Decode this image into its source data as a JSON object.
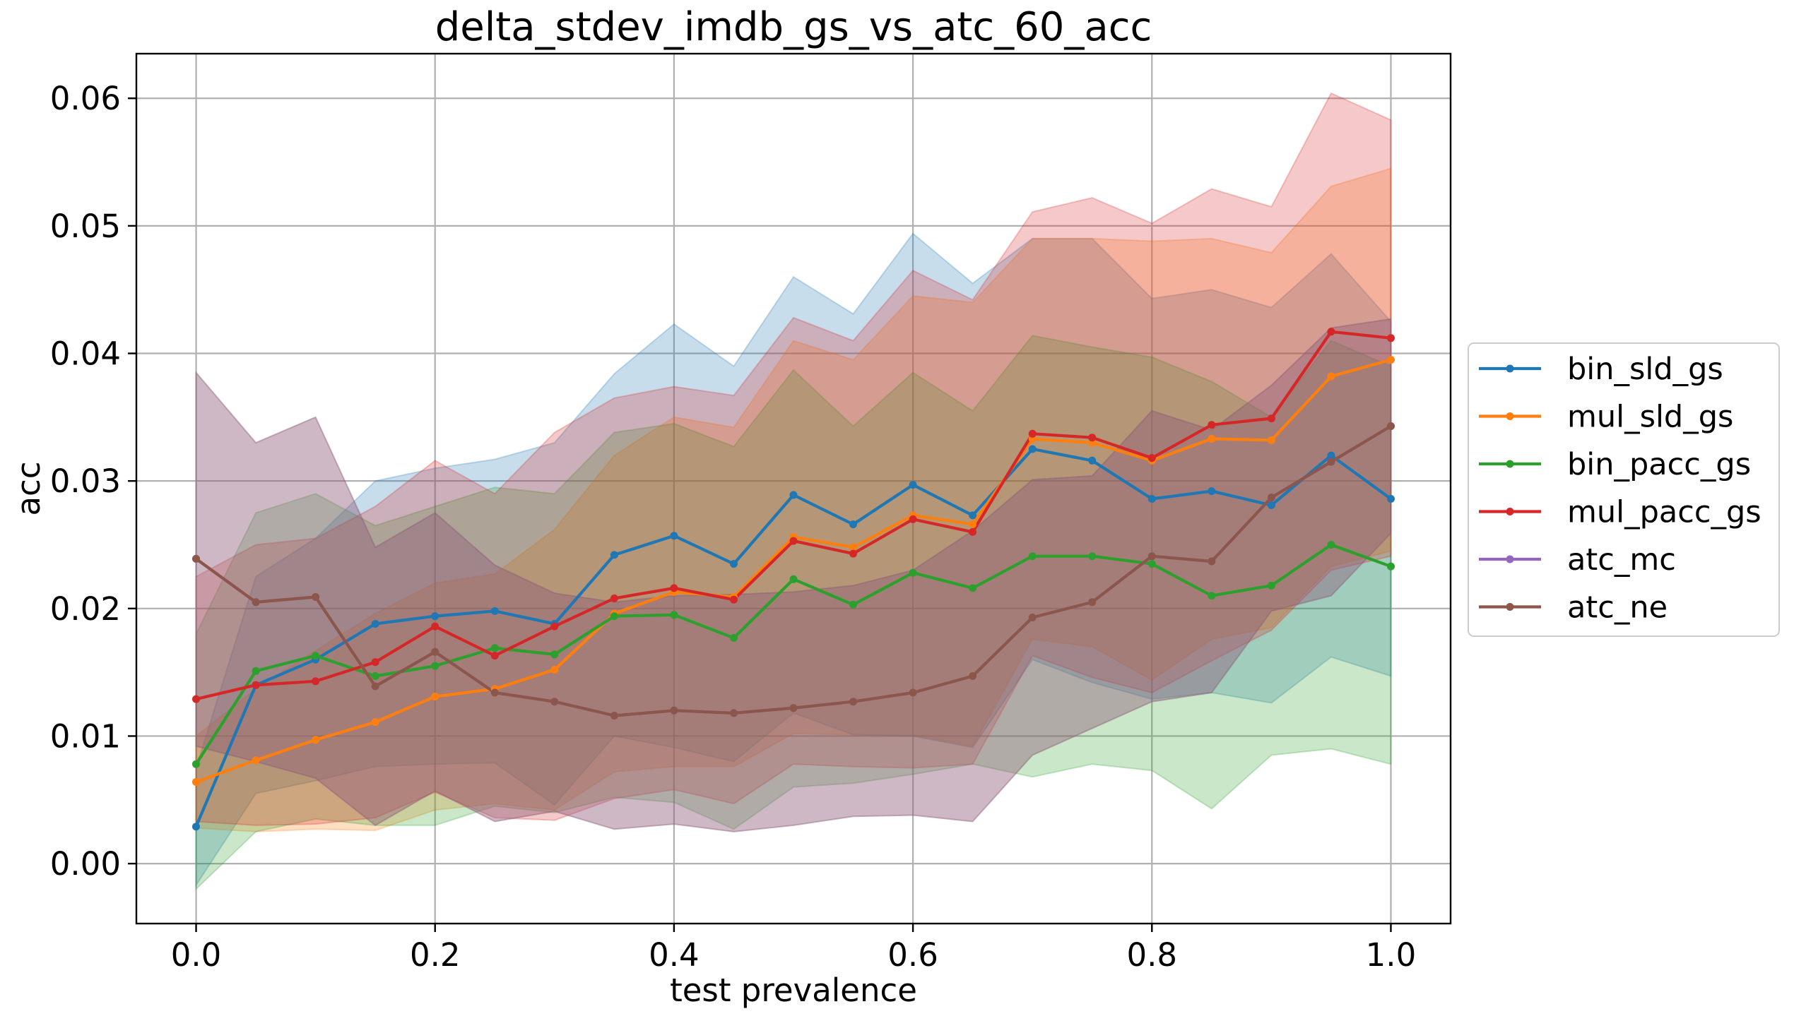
{
  "chart_data": {
    "type": "line",
    "title": "delta_stdev_imdb_gs_vs_atc_60_acc",
    "xlabel": "test prevalence",
    "ylabel": "acc",
    "xlim": [
      -0.05,
      1.05
    ],
    "ylim": [
      -0.0047,
      0.0635
    ],
    "x_ticks": [
      0.0,
      0.2,
      0.4,
      0.6,
      0.8,
      1.0
    ],
    "x_tick_labels": [
      "0.0",
      "0.2",
      "0.4",
      "0.6",
      "0.8",
      "1.0"
    ],
    "y_ticks": [
      0.0,
      0.01,
      0.02,
      0.03,
      0.04,
      0.05,
      0.06
    ],
    "y_tick_labels": [
      "0.00",
      "0.01",
      "0.02",
      "0.03",
      "0.04",
      "0.05",
      "0.06"
    ],
    "grid": true,
    "legend_position": "center-right-outside",
    "x": [
      0.0,
      0.05,
      0.1,
      0.15,
      0.2,
      0.25,
      0.3,
      0.35,
      0.4,
      0.45,
      0.5,
      0.55,
      0.6,
      0.65,
      0.7,
      0.75,
      0.8,
      0.85,
      0.9,
      0.95,
      1.0
    ],
    "series": [
      {
        "name": "bin_sld_gs",
        "color": "#1f77b4",
        "values": [
          0.0029,
          0.014,
          0.016,
          0.0188,
          0.0194,
          0.0198,
          0.0188,
          0.0242,
          0.0257,
          0.0235,
          0.0289,
          0.0266,
          0.0297,
          0.0273,
          0.0325,
          0.0316,
          0.0286,
          0.0292,
          0.0281,
          0.032,
          0.0286
        ],
        "band_upper": [
          0.0075,
          0.0225,
          0.0255,
          0.03,
          0.031,
          0.0317,
          0.033,
          0.0384,
          0.0423,
          0.039,
          0.046,
          0.0431,
          0.0494,
          0.0455,
          0.049,
          0.049,
          0.0443,
          0.045,
          0.0436,
          0.0478,
          0.0425
        ],
        "band_lower": [
          -0.0017,
          0.0055,
          0.0065,
          0.0076,
          0.0078,
          0.0079,
          0.0046,
          0.01,
          0.0091,
          0.008,
          0.0118,
          0.0101,
          0.01,
          0.0091,
          0.016,
          0.0142,
          0.0129,
          0.0134,
          0.0126,
          0.0162,
          0.0147
        ]
      },
      {
        "name": "mul_sld_gs",
        "color": "#ff7f0e",
        "values": [
          0.0064,
          0.0081,
          0.0097,
          0.0111,
          0.0131,
          0.0137,
          0.0152,
          0.0196,
          0.0213,
          0.0209,
          0.0256,
          0.0248,
          0.0273,
          0.0266,
          0.0333,
          0.033,
          0.0316,
          0.0333,
          0.0332,
          0.0382,
          0.0395
        ],
        "band_upper": [
          0.01,
          0.0137,
          0.0167,
          0.0196,
          0.022,
          0.0227,
          0.0262,
          0.032,
          0.035,
          0.0342,
          0.041,
          0.0395,
          0.0445,
          0.044,
          0.049,
          0.049,
          0.0488,
          0.049,
          0.0479,
          0.0531,
          0.0545
        ],
        "band_lower": [
          0.0028,
          0.0025,
          0.0027,
          0.0026,
          0.0042,
          0.0047,
          0.0042,
          0.0072,
          0.0076,
          0.0076,
          0.0102,
          0.0101,
          0.0101,
          0.0092,
          0.0176,
          0.017,
          0.0144,
          0.0176,
          0.0185,
          0.0233,
          0.0245
        ]
      },
      {
        "name": "bin_pacc_gs",
        "color": "#2ca02c",
        "values": [
          0.0078,
          0.0151,
          0.0163,
          0.0147,
          0.0155,
          0.0169,
          0.0164,
          0.0194,
          0.0195,
          0.0177,
          0.0223,
          0.0203,
          0.0228,
          0.0216,
          0.0241,
          0.0241,
          0.0235,
          0.021,
          0.0218,
          0.025,
          0.0233
        ],
        "band_upper": [
          0.018,
          0.0275,
          0.029,
          0.0265,
          0.028,
          0.0295,
          0.029,
          0.0338,
          0.0345,
          0.0327,
          0.0387,
          0.0343,
          0.0385,
          0.0355,
          0.0414,
          0.0405,
          0.0397,
          0.0378,
          0.035,
          0.041,
          0.039
        ],
        "band_lower": [
          -0.002,
          0.0025,
          0.0035,
          0.003,
          0.003,
          0.0045,
          0.004,
          0.0052,
          0.0048,
          0.0027,
          0.006,
          0.0063,
          0.007,
          0.0078,
          0.0068,
          0.0078,
          0.0073,
          0.0043,
          0.0085,
          0.009,
          0.0078
        ]
      },
      {
        "name": "mul_pacc_gs",
        "color": "#d62728",
        "values": [
          0.0129,
          0.014,
          0.0143,
          0.0158,
          0.0186,
          0.0163,
          0.0186,
          0.0208,
          0.0216,
          0.0207,
          0.0253,
          0.0243,
          0.027,
          0.026,
          0.0337,
          0.0334,
          0.0318,
          0.0344,
          0.0349,
          0.0417,
          0.0412
        ],
        "band_upper": [
          0.0225,
          0.025,
          0.0255,
          0.028,
          0.0316,
          0.029,
          0.0338,
          0.0365,
          0.0374,
          0.0367,
          0.0428,
          0.041,
          0.0465,
          0.0442,
          0.0511,
          0.0522,
          0.0502,
          0.0529,
          0.0515,
          0.0604,
          0.0583
        ],
        "band_lower": [
          0.0033,
          0.003,
          0.0031,
          0.0036,
          0.0056,
          0.0036,
          0.0034,
          0.0051,
          0.0058,
          0.0047,
          0.0078,
          0.0076,
          0.0075,
          0.0078,
          0.0163,
          0.0146,
          0.0134,
          0.0159,
          0.0183,
          0.023,
          0.0241
        ]
      },
      {
        "name": "atc_mc",
        "color": "#9467bd",
        "values": [
          0.0239,
          0.0205,
          0.0209,
          0.0139,
          0.0166,
          0.0134,
          0.0127,
          0.0116,
          0.012,
          0.0118,
          0.0122,
          0.0127,
          0.0134,
          0.0147,
          0.0193,
          0.0205,
          0.0241,
          0.0237,
          0.0287,
          0.0315,
          0.0343
        ],
        "band_upper": [
          0.0385,
          0.033,
          0.035,
          0.0248,
          0.0275,
          0.0234,
          0.0212,
          0.0205,
          0.021,
          0.0211,
          0.0213,
          0.0218,
          0.023,
          0.0261,
          0.0301,
          0.0304,
          0.0355,
          0.034,
          0.0375,
          0.042,
          0.0427
        ],
        "band_lower": [
          0.0092,
          0.008,
          0.0067,
          0.003,
          0.0057,
          0.0033,
          0.0041,
          0.0027,
          0.0031,
          0.0025,
          0.003,
          0.0037,
          0.0038,
          0.0033,
          0.0085,
          0.0106,
          0.0127,
          0.0134,
          0.0198,
          0.021,
          0.0259
        ]
      },
      {
        "name": "atc_ne",
        "color": "#8c564b",
        "values": [
          0.0239,
          0.0205,
          0.0209,
          0.0139,
          0.0166,
          0.0134,
          0.0127,
          0.0116,
          0.012,
          0.0118,
          0.0122,
          0.0127,
          0.0134,
          0.0147,
          0.0193,
          0.0205,
          0.0241,
          0.0237,
          0.0287,
          0.0315,
          0.0343
        ],
        "band_upper": [
          0.0385,
          0.033,
          0.035,
          0.0248,
          0.0275,
          0.0234,
          0.0212,
          0.0205,
          0.021,
          0.0211,
          0.0213,
          0.0218,
          0.023,
          0.0261,
          0.0301,
          0.0304,
          0.0355,
          0.034,
          0.0375,
          0.042,
          0.0427
        ],
        "band_lower": [
          0.0092,
          0.008,
          0.0067,
          0.003,
          0.0057,
          0.0033,
          0.0041,
          0.0027,
          0.0031,
          0.0025,
          0.003,
          0.0037,
          0.0038,
          0.0033,
          0.0085,
          0.0106,
          0.0127,
          0.0134,
          0.0198,
          0.021,
          0.0259
        ]
      }
    ]
  }
}
